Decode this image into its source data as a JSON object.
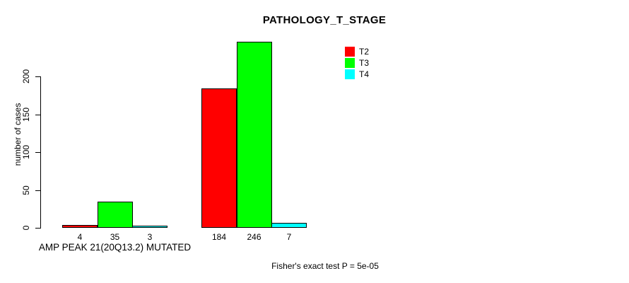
{
  "chart_data": {
    "type": "bar",
    "title": "PATHOLOGY_T_STAGE",
    "xlabel": "",
    "ylabel": "number of cases",
    "ylim": [
      0,
      200
    ],
    "yticks": [
      0,
      50,
      100,
      150,
      200
    ],
    "grid": false,
    "legend_position": "top-right",
    "series": [
      {
        "name": "T2",
        "color": "#ff0000"
      },
      {
        "name": "T3",
        "color": "#00ff00"
      },
      {
        "name": "T4",
        "color": "#00ffff"
      }
    ],
    "groups": [
      {
        "label": "AMP PEAK 21(20Q13.2) MUTATED",
        "values": [
          4,
          35,
          3
        ]
      },
      {
        "label": "",
        "values": [
          184,
          246,
          7
        ]
      }
    ],
    "annotation": "Fisher's exact test P = 5e-05"
  }
}
